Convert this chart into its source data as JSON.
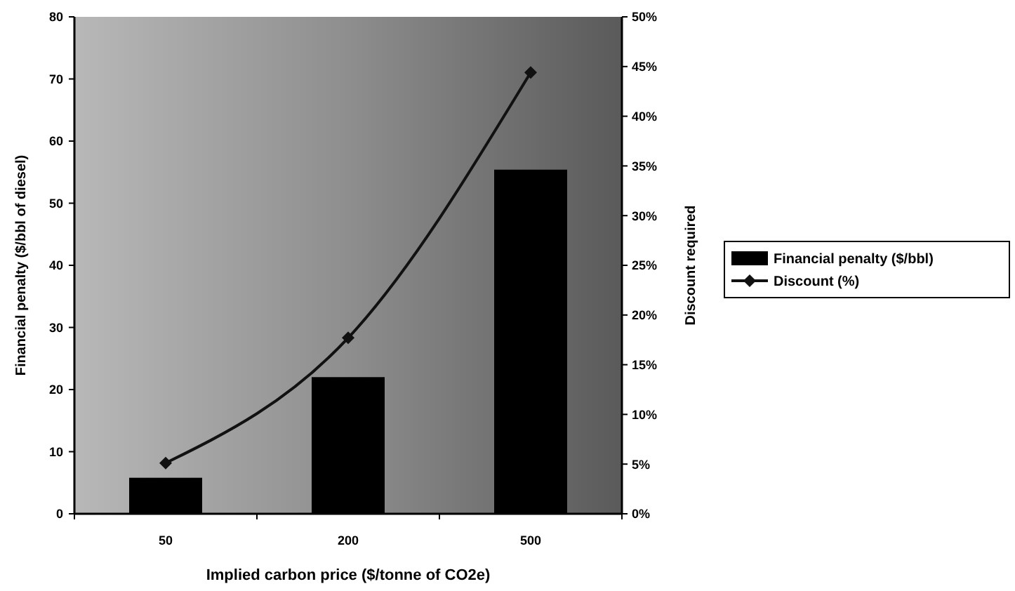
{
  "chart_data": {
    "type": "bar",
    "categories": [
      "50",
      "200",
      "500"
    ],
    "xlabel": "Implied carbon price ($/tonne of CO2e)",
    "ylabel": "Financial penalty ($/bbl of diesel)",
    "y2label": "Discount required",
    "series": [
      {
        "name": "Financial penalty ($/bbl)",
        "color": "#000000",
        "values": [
          5.8,
          22,
          55.4
        ]
      },
      {
        "name": "Discount (%)",
        "type": "line",
        "axis": "y2",
        "color": "#111111",
        "marker": "diamond",
        "values": [
          5.1,
          17.7,
          44.4
        ]
      }
    ],
    "ylim": [
      0,
      80
    ],
    "yticks": [
      0,
      10,
      20,
      30,
      40,
      50,
      60,
      70,
      80
    ],
    "y2lim": [
      0,
      50
    ],
    "y2ticks": [
      {
        "value": 0,
        "label": "0%"
      },
      {
        "value": 5,
        "label": "5%"
      },
      {
        "value": 10,
        "label": "10%"
      },
      {
        "value": 15,
        "label": "15%"
      },
      {
        "value": 20,
        "label": "20%"
      },
      {
        "value": 25,
        "label": "25%"
      },
      {
        "value": 30,
        "label": "30%"
      },
      {
        "value": 35,
        "label": "35%"
      },
      {
        "value": 40,
        "label": "40%"
      },
      {
        "value": 45,
        "label": "45%"
      },
      {
        "value": 50,
        "label": "50%"
      }
    ],
    "legend": "right"
  }
}
